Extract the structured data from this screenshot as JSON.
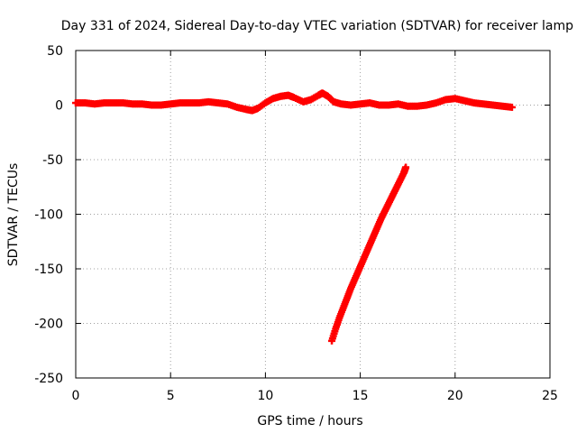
{
  "chart_data": {
    "type": "scatter",
    "title": "Day 331 of 2024, Sidereal Day-to-day VTEC variation (SDTVAR) for receiver lamp",
    "xlabel": "GPS time / hours",
    "ylabel": "SDTVAR / TECUs",
    "xlim": [
      0,
      25
    ],
    "ylim": [
      -250,
      50
    ],
    "xticks": [
      0,
      5,
      10,
      15,
      20,
      25
    ],
    "yticks": [
      50,
      0,
      -50,
      -100,
      -150,
      -200,
      -250
    ],
    "grid": true,
    "legend": "none",
    "marker": "plus",
    "series": [
      {
        "color": "#ff0000",
        "points": [
          [
            0.0,
            2
          ],
          [
            0.5,
            2
          ],
          [
            1.0,
            1
          ],
          [
            1.5,
            2
          ],
          [
            2.0,
            2
          ],
          [
            2.5,
            2
          ],
          [
            3.0,
            1
          ],
          [
            3.5,
            1
          ],
          [
            4.0,
            0
          ],
          [
            4.5,
            0
          ],
          [
            5.0,
            1
          ],
          [
            5.5,
            2
          ],
          [
            6.0,
            2
          ],
          [
            6.5,
            2
          ],
          [
            7.0,
            3
          ],
          [
            7.5,
            2
          ],
          [
            8.0,
            1
          ],
          [
            8.5,
            -2
          ],
          [
            9.0,
            -4
          ],
          [
            9.3,
            -5
          ],
          [
            9.6,
            -3
          ],
          [
            10.0,
            2
          ],
          [
            10.4,
            6
          ],
          [
            10.8,
            8
          ],
          [
            11.2,
            9
          ],
          [
            11.5,
            7
          ],
          [
            12.0,
            3
          ],
          [
            12.4,
            5
          ],
          [
            12.8,
            9
          ],
          [
            13.0,
            11
          ],
          [
            13.3,
            8
          ],
          [
            13.6,
            3
          ],
          [
            14.0,
            1
          ],
          [
            14.5,
            0
          ],
          [
            15.0,
            1
          ],
          [
            15.5,
            2
          ],
          [
            16.0,
            0
          ],
          [
            16.5,
            0
          ],
          [
            17.0,
            1
          ],
          [
            17.5,
            -1
          ],
          [
            18.0,
            -1
          ],
          [
            18.5,
            0
          ],
          [
            19.0,
            2
          ],
          [
            19.5,
            5
          ],
          [
            20.0,
            6
          ],
          [
            20.5,
            4
          ],
          [
            21.0,
            2
          ],
          [
            21.5,
            1
          ],
          [
            22.0,
            0
          ],
          [
            22.5,
            -1
          ],
          [
            23.0,
            -2
          ],
          [
            13.5,
            -216
          ],
          [
            13.7,
            -205
          ],
          [
            13.9,
            -195
          ],
          [
            14.1,
            -186
          ],
          [
            14.3,
            -177
          ],
          [
            14.5,
            -168
          ],
          [
            14.7,
            -160
          ],
          [
            14.9,
            -152
          ],
          [
            15.1,
            -144
          ],
          [
            15.3,
            -136
          ],
          [
            15.5,
            -128
          ],
          [
            15.7,
            -120
          ],
          [
            15.9,
            -112
          ],
          [
            16.1,
            -104
          ],
          [
            16.3,
            -97
          ],
          [
            16.5,
            -90
          ],
          [
            16.7,
            -83
          ],
          [
            16.9,
            -76
          ],
          [
            17.1,
            -69
          ],
          [
            17.3,
            -62
          ],
          [
            17.4,
            -57
          ]
        ]
      }
    ]
  }
}
